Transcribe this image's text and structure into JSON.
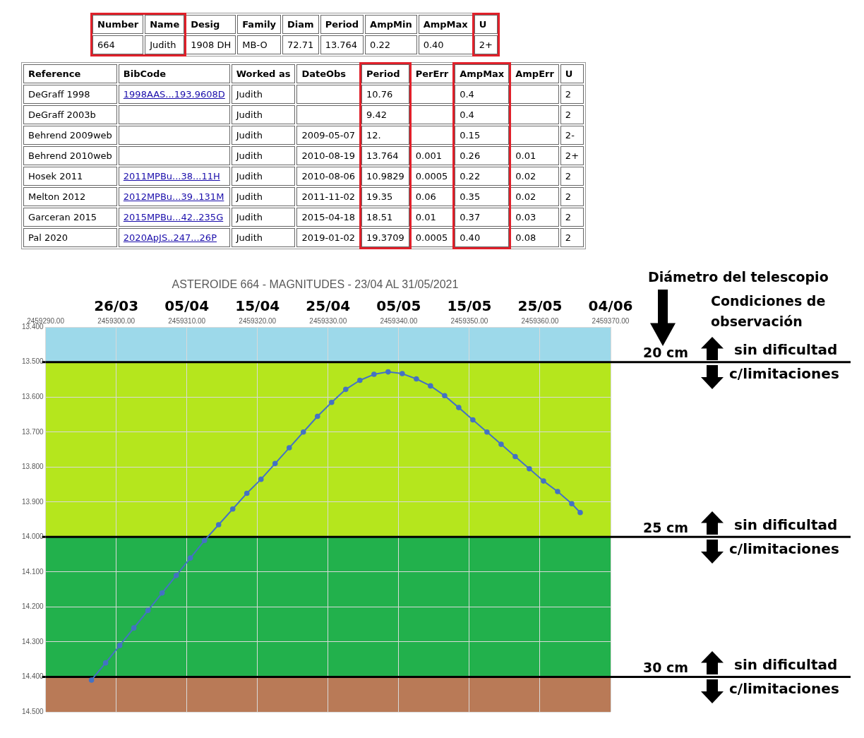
{
  "chart_data": [
    {
      "type": "other",
      "categories": [
        "Number",
        "Name",
        "Desig",
        "Family",
        "Diam",
        "Period",
        "AmpMin",
        "AmpMax",
        "U"
      ],
      "cells": [
        [
          "664",
          "Judith",
          "1908 DH",
          "MB-O",
          "72.71",
          "13.764",
          "0.22",
          "0.40",
          "2+"
        ]
      ]
    },
    {
      "type": "other",
      "categories": [
        "Reference",
        "BibCode",
        "Worked as",
        "DateObs",
        "Period",
        "PerErr",
        "AmpMax",
        "AmpErr",
        "U"
      ],
      "cells": [
        [
          "DeGraff 1998",
          "1998AAS...193.9608D",
          "Judith",
          null,
          "10.76",
          null,
          "0.4",
          null,
          "2"
        ],
        [
          "DeGraff 2003b",
          null,
          "Judith",
          null,
          "9.42",
          null,
          "0.4",
          null,
          "2"
        ],
        [
          "Behrend 2009web",
          null,
          "Judith",
          "2009-05-07",
          "12.",
          null,
          "0.15",
          null,
          "2-"
        ],
        [
          "Behrend 2010web",
          null,
          "Judith",
          "2010-08-19",
          "13.764",
          "0.001",
          "0.26",
          "0.01",
          "2+"
        ],
        [
          "Hosek 2011",
          "2011MPBu...38...11H",
          "Judith",
          "2010-08-06",
          "10.9829",
          "0.0005",
          "0.22",
          "0.02",
          "2"
        ],
        [
          "Melton 2012",
          "2012MPBu...39..131M",
          "Judith",
          "2011-11-02",
          "19.35",
          "0.06",
          "0.35",
          "0.02",
          "2"
        ],
        [
          "Garceran 2015",
          "2015MPBu...42..235G",
          "Judith",
          "2015-04-18",
          "18.51",
          "0.01",
          "0.37",
          "0.03",
          "2"
        ],
        [
          "Pal 2020",
          "2020ApJS..247...26P",
          "Judith",
          "2019-01-02",
          "19.3709",
          "0.0005",
          "0.40",
          "0.08",
          "2"
        ]
      ]
    },
    {
      "type": "line",
      "title": "ASTEROIDE 664 - MAGNITUDES - 23/04 AL 31/05/2021",
      "x": [
        2459296.5,
        2459298.5,
        2459300.5,
        2459302.5,
        2459304.5,
        2459306.5,
        2459308.5,
        2459310.5,
        2459312.5,
        2459314.5,
        2459316.5,
        2459318.5,
        2459320.5,
        2459322.5,
        2459324.5,
        2459326.5,
        2459328.5,
        2459330.5,
        2459332.5,
        2459334.5,
        2459336.5,
        2459338.5,
        2459340.5,
        2459342.5,
        2459344.5,
        2459346.5,
        2459348.5,
        2459350.5,
        2459352.5,
        2459354.5,
        2459356.5,
        2459358.5,
        2459360.5,
        2459362.5,
        2459364.5,
        2459365.7
      ],
      "values": [
        14.409,
        14.36,
        14.31,
        14.26,
        14.21,
        14.16,
        14.11,
        14.06,
        14.01,
        13.965,
        13.92,
        13.875,
        13.835,
        13.79,
        13.745,
        13.7,
        13.655,
        13.615,
        13.578,
        13.552,
        13.535,
        13.528,
        13.533,
        13.548,
        13.568,
        13.596,
        13.63,
        13.665,
        13.7,
        13.735,
        13.77,
        13.805,
        13.84,
        13.87,
        13.905,
        13.93
      ],
      "color": "#4472c4",
      "marker": "circle",
      "grid": true,
      "legend": false,
      "xlim": [
        2459290,
        2459370
      ],
      "xticks": [
        {
          "value": 2459290,
          "label": "2459290.00"
        },
        {
          "value": 2459300,
          "label": "2459300.00"
        },
        {
          "value": 2459310,
          "label": "2459310.00"
        },
        {
          "value": 2459320,
          "label": "2459320.00"
        },
        {
          "value": 2459330,
          "label": "2459330.00"
        },
        {
          "value": 2459340,
          "label": "2459340.00"
        },
        {
          "value": 2459350,
          "label": "2459350.00"
        },
        {
          "value": 2459360,
          "label": "2459360.00"
        },
        {
          "value": 2459370,
          "label": "2459370.00"
        }
      ],
      "x2lim": [
        "--03-16",
        "--06-04"
      ],
      "x2ticks": [
        {
          "value": "--03-26",
          "label": "26/03"
        },
        {
          "value": "--04-05",
          "label": "05/04"
        },
        {
          "value": "--04-15",
          "label": "15/04"
        },
        {
          "value": "--04-25",
          "label": "25/04"
        },
        {
          "value": "--05-05",
          "label": "05/05"
        },
        {
          "value": "--05-15",
          "label": "15/05"
        },
        {
          "value": "--05-25",
          "label": "25/05"
        },
        {
          "value": "--06-04",
          "label": "04/06"
        }
      ],
      "ylim": [
        14.5,
        13.4
      ],
      "yticks": [
        {
          "value": 13.4,
          "label": "13.400"
        },
        {
          "value": 13.5,
          "label": "13.500"
        },
        {
          "value": 13.6,
          "label": "13.600"
        },
        {
          "value": 13.7,
          "label": "13.700"
        },
        {
          "value": 13.8,
          "label": "13.800"
        },
        {
          "value": 13.9,
          "label": "13.900"
        },
        {
          "value": 14.0,
          "label": "14.000"
        },
        {
          "value": 14.1,
          "label": "14.100"
        },
        {
          "value": 14.2,
          "label": "14.200"
        },
        {
          "value": 14.3,
          "label": "14.300"
        },
        {
          "value": 14.4,
          "label": "14.400"
        },
        {
          "value": 14.5,
          "label": "14.500"
        }
      ],
      "bands": [
        {
          "axis": "y",
          "from": 13.4,
          "to": 13.5,
          "color": "#9dd9ea"
        },
        {
          "axis": "y",
          "from": 13.5,
          "to": 14.0,
          "color": "#b5e61d"
        },
        {
          "axis": "y",
          "from": 14.0,
          "to": 14.4,
          "color": "#22b14c"
        },
        {
          "axis": "y",
          "from": 14.4,
          "to": 14.5,
          "color": "#b97a57"
        }
      ],
      "ref_lines": [
        {
          "axis": "y",
          "value": 13.5,
          "label": "20 cm",
          "color": "#000000"
        },
        {
          "axis": "y",
          "value": 14.0,
          "label": "25 cm",
          "color": "#000000"
        },
        {
          "axis": "y",
          "value": 14.4,
          "label": "30 cm",
          "color": "#000000"
        }
      ],
      "annotations": [
        "Diámetro del telescopio",
        "Condiciones de observación",
        "sin dificultad",
        "c/limitaciones",
        "sin dificultad",
        "c/limitaciones",
        "sin dificultad",
        "c/limitaciones"
      ]
    }
  ]
}
